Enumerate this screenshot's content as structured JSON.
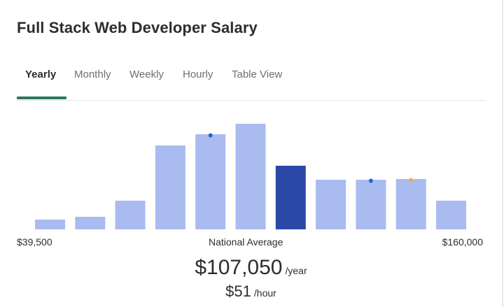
{
  "title": "Full Stack Web Developer Salary",
  "tabs": [
    {
      "label": "Yearly",
      "active": true
    },
    {
      "label": "Monthly",
      "active": false
    },
    {
      "label": "Weekly",
      "active": false
    },
    {
      "label": "Hourly",
      "active": false
    },
    {
      "label": "Table View",
      "active": false
    }
  ],
  "colors": {
    "bar": "#aabbf0",
    "highlight_bar": "#2a49a6",
    "marker_blue": "#1a66d6",
    "marker_orange": "#f5a65b",
    "tab_accent": "#2c7a5d"
  },
  "chart_data": {
    "type": "bar",
    "title": "",
    "xlabel": "National Average",
    "ylabel": "",
    "range_min_label": "$39,500",
    "range_max_label": "$160,000",
    "values": [
      14,
      18,
      41,
      120,
      136,
      151,
      91,
      71,
      71,
      72,
      41
    ],
    "highlight_index": 6,
    "markers": [
      {
        "bar_index": 4,
        "color": "blue"
      },
      {
        "bar_index": 8,
        "color": "blue"
      },
      {
        "bar_index": 9,
        "color": "orange"
      }
    ],
    "ylim": [
      0,
      151
    ],
    "grid": false,
    "legend": "none"
  },
  "average": {
    "yearly_value": "$107,050",
    "yearly_unit": "/year",
    "hourly_value": "$51",
    "hourly_unit": "/hour"
  }
}
